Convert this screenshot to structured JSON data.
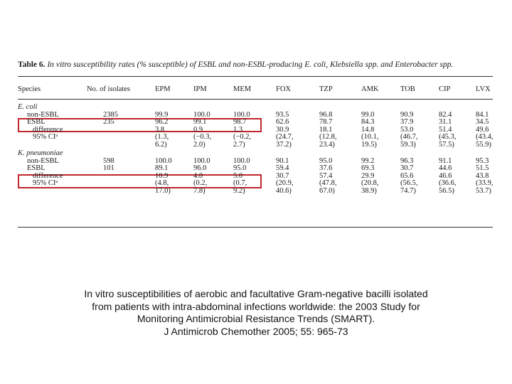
{
  "table": {
    "title_number": "Table 6.",
    "title_text": " In vitro susceptibility rates (% susceptible) of ESBL and non-ESBL-producing E. coli, Klebsiella spp. and Enterobacter spp.",
    "headers": [
      "Species",
      "No. of isolates",
      "EPM",
      "IPM",
      "MEM",
      "FOX",
      "TZP",
      "AMK",
      "TOB",
      "CIP",
      "LVX"
    ],
    "groups": [
      {
        "name": "E. coli",
        "rows": [
          {
            "label": "non-ESBL",
            "isolates": "2385",
            "values": [
              "99.9",
              "100.0",
              "100.0",
              "93.5",
              "96.8",
              "99.0",
              "90.9",
              "82.4",
              "84.1"
            ]
          },
          {
            "label": "ESBL",
            "isolates": "235",
            "values": [
              "96.2",
              "99.1",
              "98.7",
              "62.6",
              "78.7",
              "84.3",
              "37.9",
              "31.1",
              "34.5"
            ]
          },
          {
            "label": "difference",
            "isolates": "",
            "values": [
              "3.8",
              "0.9",
              "1.3",
              "30.9",
              "18.1",
              "14.8",
              "53.0",
              "51.4",
              "49.6"
            ]
          },
          {
            "label": "95% CIᵃ",
            "isolates": "",
            "values": [
              "(1.3,",
              "(−0.3,",
              "(−0.2,",
              "(24.7,",
              "(12.8,",
              "(10.1,",
              "(46.7,",
              "(45.3,",
              "(43.4,"
            ]
          },
          {
            "label": "",
            "isolates": "",
            "values": [
              "6.2)",
              "2.0)",
              "2.7)",
              "37.2)",
              "23.4)",
              "19.5)",
              "59.3)",
              "57.5)",
              "55.9)"
            ]
          }
        ]
      },
      {
        "name": "K. pneumoniae",
        "rows": [
          {
            "label": "non-ESBL",
            "isolates": "598",
            "values": [
              "100.0",
              "100.0",
              "100.0",
              "90.1",
              "95.0",
              "99.2",
              "96.3",
              "91.1",
              "95.3"
            ]
          },
          {
            "label": "ESBL",
            "isolates": "101",
            "values": [
              "89.1",
              "96.0",
              "95.0",
              "59.4",
              "37.6",
              "69.3",
              "30.7",
              "44.6",
              "51.5"
            ]
          },
          {
            "label": "difference",
            "isolates": "",
            "values": [
              "10.9",
              "4.0",
              "5.0",
              "30.7",
              "57.4",
              "29.9",
              "65.6",
              "46.6",
              "43.8"
            ]
          },
          {
            "label": "95% CIᵃ",
            "isolates": "",
            "values": [
              "(4.8,",
              "(0.2,",
              "(0.7,",
              "(20.9,",
              "(47.8,",
              "(20.8,",
              "(56.5,",
              "(36.6,",
              "(33.9,"
            ]
          },
          {
            "label": "",
            "isolates": "",
            "values": [
              "17.0)",
              "7.8)",
              "9.2)",
              "40.6)",
              "67.0)",
              "38.9)",
              "74.7)",
              "56.5)",
              "53.7)"
            ]
          }
        ]
      }
    ],
    "highlight_color": "#c0262c"
  },
  "caption": {
    "line1": "In vitro susceptibilities of aerobic and facultative Gram-negative bacilli isolated",
    "line2": "from patients with intra-abdominal infections worldwide: the 2003 Study for",
    "line3": "Monitoring Antimicrobial Resistance Trends (SMART).",
    "line4": "J Antimicrob Chemother 2005; 55: 965-73"
  }
}
